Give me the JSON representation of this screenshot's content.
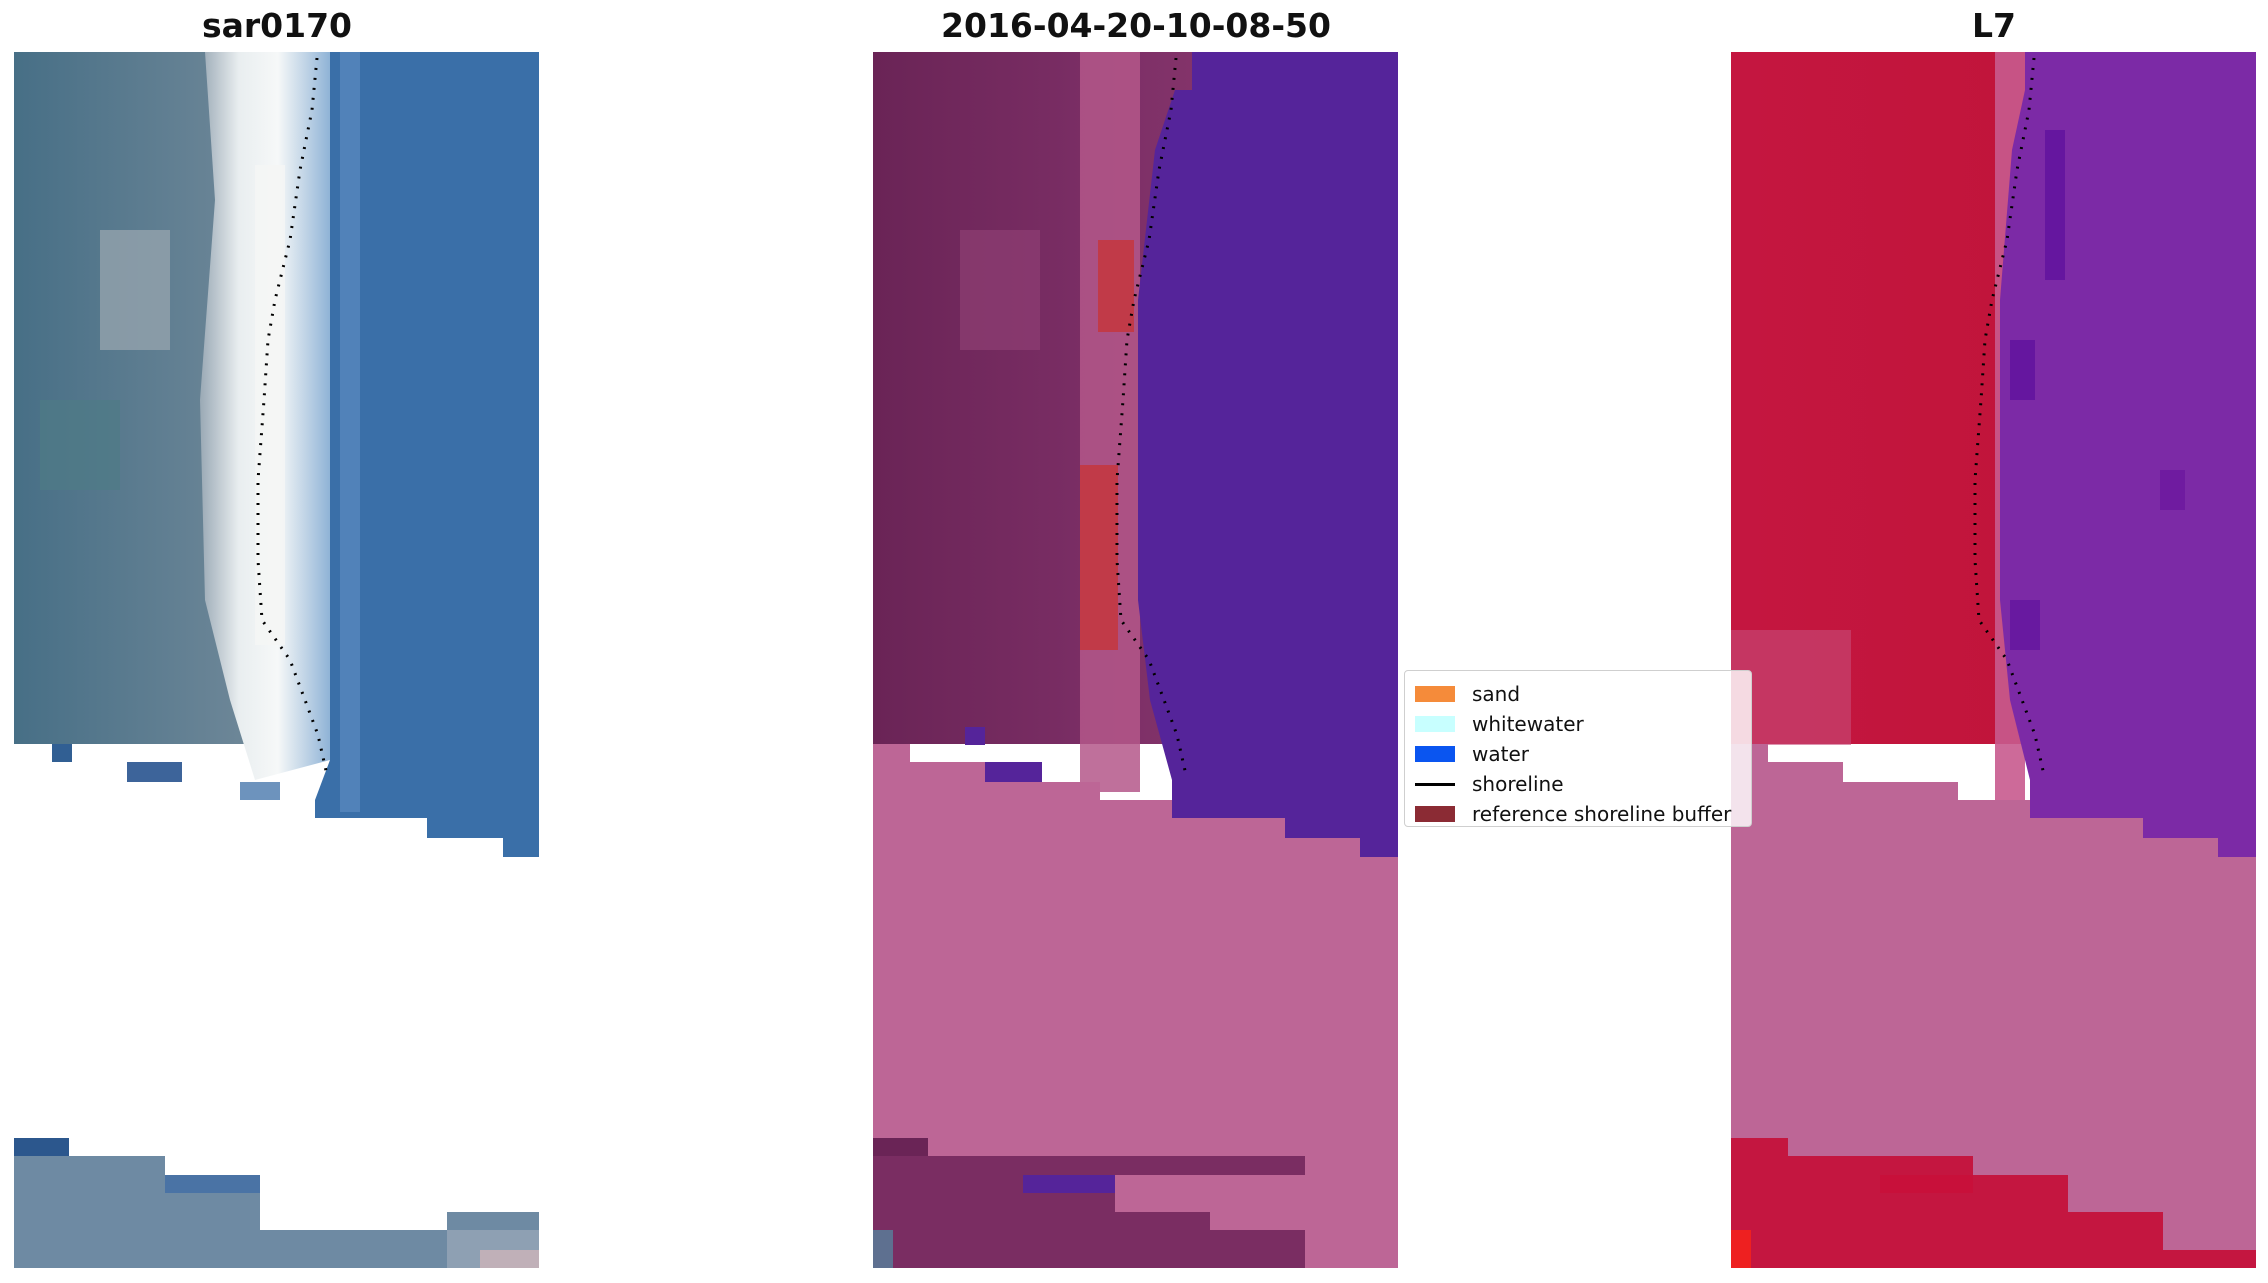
{
  "panels": [
    {
      "title": "sar0170"
    },
    {
      "title": "2016-04-20-10-08-50"
    },
    {
      "title": "L7"
    }
  ],
  "legend": {
    "items": [
      {
        "label": "sand",
        "color": "#f58b3a"
      },
      {
        "label": "whitewater",
        "color": "#c8ffff"
      },
      {
        "label": "water",
        "color": "#0a55f0"
      },
      {
        "label": "shoreline",
        "color": "#000000",
        "type": "line"
      },
      {
        "label": "reference shoreline buffer",
        "color": "#8b2b34"
      }
    ]
  },
  "colors": {
    "rgb_water": "#3a6fa8",
    "rgb_land": "#5f7f95",
    "rgb_whitewater": "#e8f0f0",
    "class_land": "#74285f",
    "class_water": "#55249a",
    "class_nodata": "#bd6696",
    "class_buffer": "#c13a48",
    "fc_land": "#c0123a",
    "fc_water": "#7c2aa6",
    "fc_nodata": "#bd6696",
    "shoreline": "#000000"
  }
}
